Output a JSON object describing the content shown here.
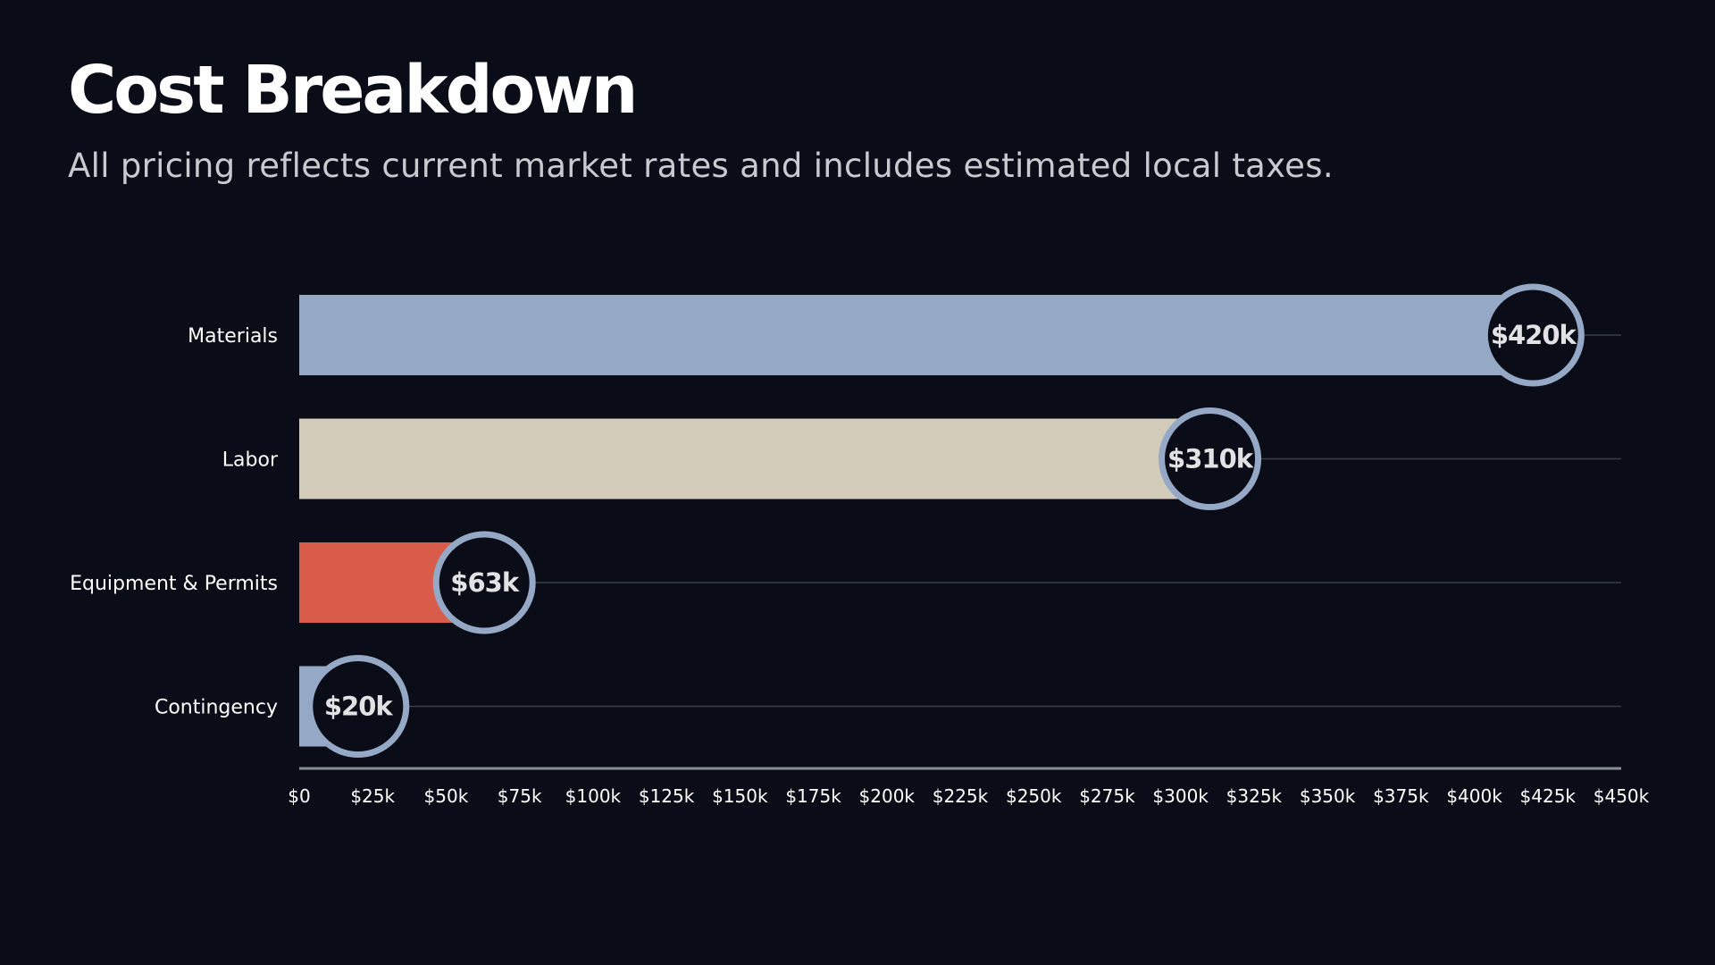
{
  "header": {
    "title": "Cost Breakdown",
    "subtitle": "All pricing reflects current market rates and includes estimated local taxes."
  },
  "chart_data": {
    "type": "bar",
    "orientation": "horizontal",
    "categories": [
      "Materials",
      "Labor",
      "Equipment & Permits",
      "Contingency"
    ],
    "values": [
      420000,
      310000,
      63000,
      20000
    ],
    "data_labels": [
      "$420k",
      "$310k",
      "$63k",
      "$20k"
    ],
    "colors": [
      "#95a8c6",
      "#d3cbba",
      "#d95c4a",
      "#95a8c6"
    ],
    "marker_color": "#95a8c6",
    "xlim": [
      0,
      450000
    ],
    "x_ticks": [
      0,
      25000,
      50000,
      75000,
      100000,
      125000,
      150000,
      175000,
      200000,
      225000,
      250000,
      275000,
      300000,
      325000,
      350000,
      375000,
      400000,
      425000,
      450000
    ],
    "x_tick_labels": [
      "$0",
      "$25k",
      "$50k",
      "$75k",
      "$100k",
      "$125k",
      "$150k",
      "$175k",
      "$200k",
      "$225k",
      "$250k",
      "$275k",
      "$300k",
      "$325k",
      "$350k",
      "$375k",
      "$400k",
      "$425k",
      "$450k"
    ],
    "grid": true,
    "legend": "none"
  }
}
